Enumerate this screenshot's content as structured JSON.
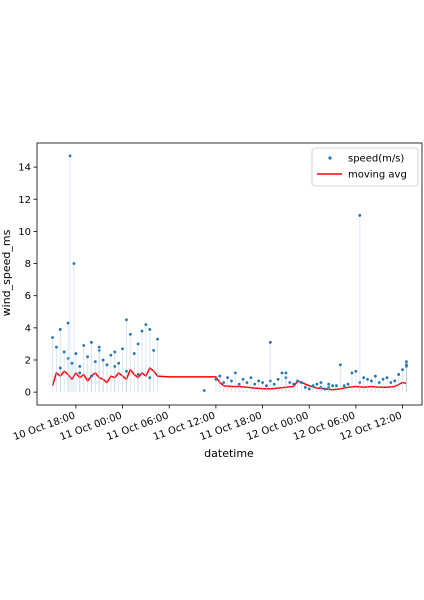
{
  "chart_data": {
    "type": "scatter",
    "title": "",
    "xlabel": "datetime",
    "ylabel": "wind_speed_ms",
    "ylim": [
      -0.8,
      15.5
    ],
    "yticks": [
      0,
      2,
      4,
      6,
      8,
      10,
      12,
      14
    ],
    "xlim": [
      "2023-10-10 13:00",
      "2023-10-12 14:30"
    ],
    "xticks": [
      "2023-10-10 18:00",
      "2023-10-11 00:00",
      "2023-10-11 06:00",
      "2023-10-11 12:00",
      "2023-10-11 18:00",
      "2023-10-12 00:00",
      "2023-10-12 06:00",
      "2023-10-12 12:00"
    ],
    "xticklabels": [
      "10 Oct 18:00",
      "11 Oct 00:00",
      "11 Oct 06:00",
      "11 Oct 12:00",
      "11 Oct 18:00",
      "12 Oct 00:00",
      "12 Oct 06:00",
      "12 Oct 12:00"
    ],
    "grid": false,
    "legend": "top-right",
    "series": [
      {
        "name": "speed(m/s)",
        "kind": "scatter",
        "color": "#1f77b4",
        "x": [
          "2023-10-10 15:00",
          "2023-10-10 15:30",
          "2023-10-10 16:00",
          "2023-10-10 16:30",
          "2023-10-10 17:00",
          "2023-10-10 17:30",
          "2023-10-10 18:00",
          "2023-10-10 18:30",
          "2023-10-10 19:00",
          "2023-10-10 19:30",
          "2023-10-10 20:00",
          "2023-10-10 20:30",
          "2023-10-10 21:00",
          "2023-10-10 21:30",
          "2023-10-10 22:00",
          "2023-10-10 22:30",
          "2023-10-10 23:00",
          "2023-10-10 23:30",
          "2023-10-11 00:00",
          "2023-10-11 00:30",
          "2023-10-11 01:00",
          "2023-10-11 01:30",
          "2023-10-11 02:00",
          "2023-10-11 02:30",
          "2023-10-11 03:00",
          "2023-10-11 03:30",
          "2023-10-11 04:00",
          "2023-10-11 04:30",
          "2023-10-10 16:00",
          "2023-10-10 17:00",
          "2023-10-10 18:30",
          "2023-10-10 20:00",
          "2023-10-10 21:30",
          "2023-10-10 23:00",
          "2023-10-11 00:30",
          "2023-10-11 02:00",
          "2023-10-11 03:30",
          "2023-10-10 17:15",
          "2023-10-10 17:45",
          "2023-10-10 21:00",
          "2023-10-11 10:30",
          "2023-10-11 12:00",
          "2023-10-11 12:30",
          "2023-10-11 13:00",
          "2023-10-11 13:30",
          "2023-10-11 14:00",
          "2023-10-11 14:30",
          "2023-10-11 15:00",
          "2023-10-11 15:30",
          "2023-10-11 16:00",
          "2023-10-11 16:30",
          "2023-10-11 17:00",
          "2023-10-11 17:30",
          "2023-10-11 18:00",
          "2023-10-11 18:30",
          "2023-10-11 19:00",
          "2023-10-11 19:30",
          "2023-10-11 20:00",
          "2023-10-11 20:30",
          "2023-10-11 21:00",
          "2023-10-11 21:30",
          "2023-10-11 22:00",
          "2023-10-11 22:30",
          "2023-10-11 23:00",
          "2023-10-11 23:30",
          "2023-10-12 00:00",
          "2023-10-12 00:30",
          "2023-10-12 01:00",
          "2023-10-12 01:30",
          "2023-10-12 02:00",
          "2023-10-12 02:30",
          "2023-10-12 03:00",
          "2023-10-12 03:30",
          "2023-10-12 04:00",
          "2023-10-12 04:30",
          "2023-10-12 05:00",
          "2023-10-12 05:30",
          "2023-10-12 06:00",
          "2023-10-12 06:30",
          "2023-10-12 07:00",
          "2023-10-12 07:30",
          "2023-10-12 08:00",
          "2023-10-12 08:30",
          "2023-10-12 09:00",
          "2023-10-12 09:30",
          "2023-10-12 10:00",
          "2023-10-12 10:30",
          "2023-10-12 11:00",
          "2023-10-12 11:30",
          "2023-10-12 12:00",
          "2023-10-12 12:30",
          "2023-10-11 19:00",
          "2023-10-11 21:00",
          "2023-10-12 01:30",
          "2023-10-12 02:30",
          "2023-10-12 06:30",
          "2023-10-12 12:30",
          "2023-10-12 12:30"
        ],
        "y": [
          3.4,
          2.8,
          3.9,
          2.5,
          2.1,
          1.8,
          2.4,
          1.6,
          2.9,
          2.2,
          3.1,
          1.9,
          2.6,
          2.0,
          1.7,
          2.3,
          2.5,
          1.8,
          2.7,
          4.5,
          3.6,
          2.4,
          3.0,
          3.8,
          4.2,
          3.9,
          2.6,
          3.3,
          1.5,
          4.3,
          1.2,
          1.0,
          2.0,
          1.6,
          1.3,
          1.1,
          0.9,
          14.7,
          8.0,
          2.8,
          0.1,
          0.8,
          1.0,
          0.6,
          0.9,
          0.7,
          1.2,
          0.5,
          0.8,
          0.6,
          0.9,
          0.5,
          0.7,
          0.6,
          0.4,
          0.7,
          0.5,
          0.8,
          1.2,
          0.9,
          0.6,
          0.5,
          0.7,
          0.6,
          0.3,
          0.2,
          0.4,
          0.5,
          0.3,
          0.2,
          0.3,
          0.4,
          0.4,
          1.7,
          0.4,
          0.5,
          1.2,
          1.3,
          0.6,
          0.9,
          0.8,
          0.7,
          1.0,
          0.6,
          0.8,
          0.9,
          0.6,
          0.7,
          1.1,
          1.4,
          1.9,
          3.1,
          1.2,
          0.6,
          0.5,
          11.0,
          1.6,
          1.7
        ]
      },
      {
        "name": "moving avg",
        "kind": "line",
        "color": "#ff0000",
        "x": [
          "2023-10-10 15:00",
          "2023-10-10 15:30",
          "2023-10-10 16:00",
          "2023-10-10 16:30",
          "2023-10-10 17:00",
          "2023-10-10 17:30",
          "2023-10-10 18:00",
          "2023-10-10 18:30",
          "2023-10-10 19:00",
          "2023-10-10 19:30",
          "2023-10-10 20:00",
          "2023-10-10 20:30",
          "2023-10-10 21:00",
          "2023-10-10 21:30",
          "2023-10-10 22:00",
          "2023-10-10 22:30",
          "2023-10-10 23:00",
          "2023-10-10 23:30",
          "2023-10-11 00:00",
          "2023-10-11 00:30",
          "2023-10-11 01:00",
          "2023-10-11 01:30",
          "2023-10-11 02:00",
          "2023-10-11 02:30",
          "2023-10-11 03:00",
          "2023-10-11 03:30",
          "2023-10-11 04:00",
          "2023-10-11 04:30",
          "2023-10-11 06:00",
          "2023-10-11 09:00",
          "2023-10-11 12:00",
          "2023-10-11 12:30",
          "2023-10-11 13:00",
          "2023-10-11 14:00",
          "2023-10-11 15:00",
          "2023-10-11 16:00",
          "2023-10-11 17:00",
          "2023-10-11 18:00",
          "2023-10-11 19:00",
          "2023-10-11 20:00",
          "2023-10-11 21:00",
          "2023-10-11 22:00",
          "2023-10-11 22:30",
          "2023-10-11 23:00",
          "2023-10-12 00:00",
          "2023-10-12 01:00",
          "2023-10-12 02:00",
          "2023-10-12 03:00",
          "2023-10-12 04:00",
          "2023-10-12 05:00",
          "2023-10-12 06:00",
          "2023-10-12 07:00",
          "2023-10-12 08:00",
          "2023-10-12 09:00",
          "2023-10-12 10:00",
          "2023-10-12 11:00",
          "2023-10-12 12:00",
          "2023-10-12 12:30"
        ],
        "y": [
          0.4,
          1.2,
          1.0,
          1.3,
          1.1,
          0.8,
          1.2,
          0.9,
          1.1,
          0.7,
          1.0,
          1.2,
          0.9,
          0.8,
          0.6,
          1.0,
          0.9,
          1.2,
          1.0,
          0.8,
          1.4,
          1.1,
          0.9,
          1.2,
          1.0,
          1.5,
          1.3,
          1.0,
          0.95,
          0.95,
          0.95,
          0.6,
          0.4,
          0.35,
          0.35,
          0.3,
          0.25,
          0.22,
          0.2,
          0.25,
          0.3,
          0.35,
          0.7,
          0.6,
          0.4,
          0.25,
          0.2,
          0.15,
          0.2,
          0.3,
          0.35,
          0.3,
          0.35,
          0.3,
          0.3,
          0.35,
          0.6,
          0.55
        ]
      }
    ]
  }
}
